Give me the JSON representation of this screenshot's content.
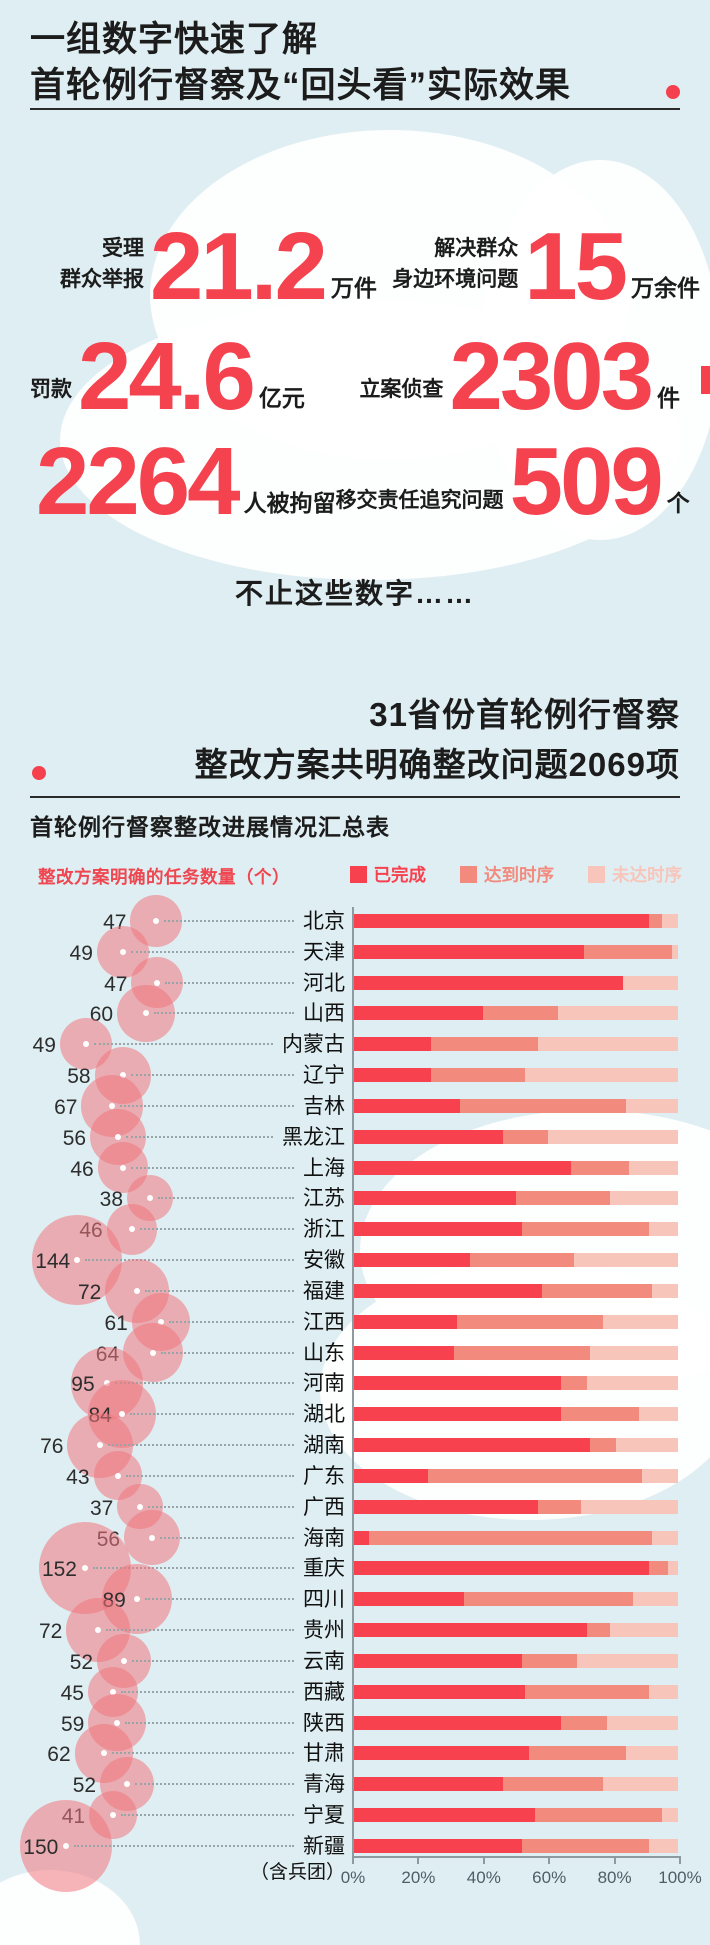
{
  "header": {
    "title_line1": "一组数字快速了解",
    "title_line2": "首轮例行督察及“回头看”实际效果"
  },
  "stats": {
    "s1": {
      "label1": "受理",
      "label2": "群众举报",
      "value": "21.2",
      "unit": "万件"
    },
    "s2": {
      "label1": "解决群众",
      "label2": "身边环境问题",
      "value": "15",
      "unit": "万余件"
    },
    "s3": {
      "label": "罚款",
      "value": "24.6",
      "unit": "亿元"
    },
    "s4": {
      "label": "立案侦查",
      "value": "2303",
      "unit": "件"
    },
    "s5": {
      "value": "2264",
      "label": "人被拘留"
    },
    "s6": {
      "label": "移交责任追究问题",
      "value": "509",
      "unit": "个"
    }
  },
  "interlude": "不止这些数字……",
  "section2": {
    "title_line1": "31省份首轮例行督察",
    "title_line2": "整改方案共明确整改问题2069项"
  },
  "chart_data": {
    "type": "bar",
    "title": "首轮例行督察整改进展情况汇总表",
    "bubble_label": "整改方案明确的任务数量（个）",
    "legend": [
      "已完成",
      "达到时序",
      "未达时序"
    ],
    "colors": {
      "done": "#f8414e",
      "ontrack": "#f28b7d",
      "behind": "#f8c5bb",
      "bubble": "rgba(240,118,126,0.55)",
      "accent": "#f5414e"
    },
    "x_ticks": [
      "0%",
      "20%",
      "40%",
      "60%",
      "80%",
      "100%"
    ],
    "xlim": [
      0,
      100
    ],
    "footnote": "（含兵团）",
    "provinces": [
      "北京",
      "天津",
      "河北",
      "山西",
      "内蒙古",
      "辽宁",
      "吉林",
      "黑龙江",
      "上海",
      "江苏",
      "浙江",
      "安徽",
      "福建",
      "江西",
      "山东",
      "河南",
      "湖北",
      "湖南",
      "广东",
      "广西",
      "海南",
      "重庆",
      "四川",
      "贵州",
      "云南",
      "西藏",
      "陕西",
      "甘肃",
      "青海",
      "宁夏",
      "新疆"
    ],
    "tasks": [
      47,
      49,
      47,
      60,
      49,
      58,
      67,
      56,
      46,
      38,
      46,
      144,
      72,
      61,
      64,
      95,
      84,
      76,
      43,
      37,
      56,
      152,
      89,
      72,
      52,
      45,
      59,
      62,
      52,
      41,
      150
    ],
    "series": [
      {
        "name": "已完成",
        "values": [
          91,
          71,
          83,
          40,
          24,
          24,
          33,
          46,
          67,
          50,
          52,
          36,
          58,
          32,
          31,
          64,
          64,
          73,
          23,
          57,
          5,
          91,
          34,
          72,
          52,
          53,
          64,
          54,
          46,
          56,
          52
        ]
      },
      {
        "name": "达到时序",
        "values": [
          4,
          27,
          0,
          23,
          33,
          29,
          51,
          14,
          18,
          29,
          39,
          32,
          34,
          45,
          42,
          8,
          24,
          8,
          66,
          13,
          87,
          6,
          52,
          7,
          17,
          38,
          14,
          30,
          31,
          39,
          39
        ]
      },
      {
        "name": "未达时序",
        "values": [
          5,
          2,
          17,
          37,
          43,
          47,
          16,
          40,
          15,
          21,
          9,
          32,
          8,
          23,
          27,
          28,
          12,
          19,
          11,
          30,
          8,
          3,
          14,
          21,
          31,
          9,
          22,
          16,
          23,
          5,
          9
        ]
      }
    ]
  }
}
